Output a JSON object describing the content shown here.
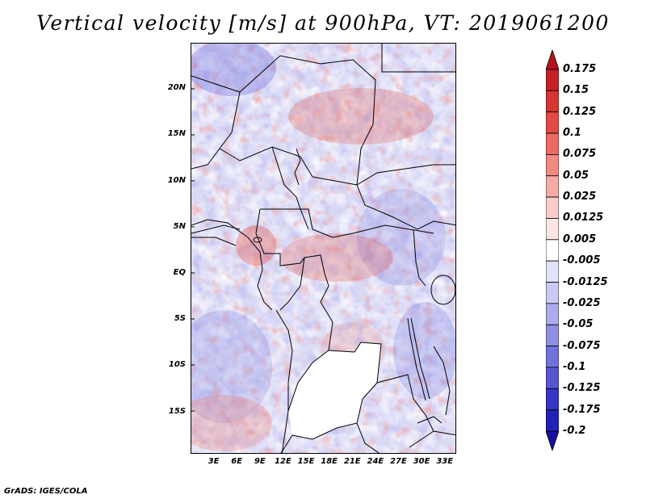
{
  "title": "Vertical velocity [m/s] at 900hPa, VT: 2019061200",
  "map": {
    "lat_labels": [
      "20N",
      "15N",
      "10N",
      "5N",
      "EQ",
      "5S",
      "10S",
      "15S"
    ],
    "lat_values": [
      20,
      15,
      10,
      5,
      0,
      -5,
      -10,
      -15
    ],
    "lon_labels": [
      "3E",
      "6E",
      "9E",
      "12E",
      "15E",
      "18E",
      "21E",
      "24E",
      "27E",
      "30E",
      "33E"
    ],
    "lon_values": [
      3,
      6,
      9,
      12,
      15,
      18,
      21,
      24,
      27,
      30,
      33
    ],
    "lon_range": [
      0,
      34.5
    ],
    "lat_range": [
      -19.5,
      25
    ],
    "masked_region_color": "#ffffff"
  },
  "colorbar": {
    "labels": [
      "0.175",
      "0.15",
      "0.125",
      "0.1",
      "0.075",
      "0.05",
      "0.025",
      "0.0125",
      "0.005",
      "-0.005",
      "-0.0125",
      "-0.025",
      "-0.05",
      "-0.075",
      "-0.1",
      "-0.125",
      "-0.175",
      "-0.2"
    ],
    "colors": [
      "#b1141c",
      "#c42127",
      "#d73530",
      "#e34a42",
      "#ec6a60",
      "#f28a82",
      "#f6aba5",
      "#f9cdc9",
      "#fbe6e3",
      "#ffffff",
      "#e2e2f8",
      "#c9c9f2",
      "#acacec",
      "#8f8fe3",
      "#7272dc",
      "#5656d2",
      "#3636c6",
      "#2222b7",
      "#1a10a0"
    ]
  },
  "credit": "GrADS: IGES/COLA"
}
